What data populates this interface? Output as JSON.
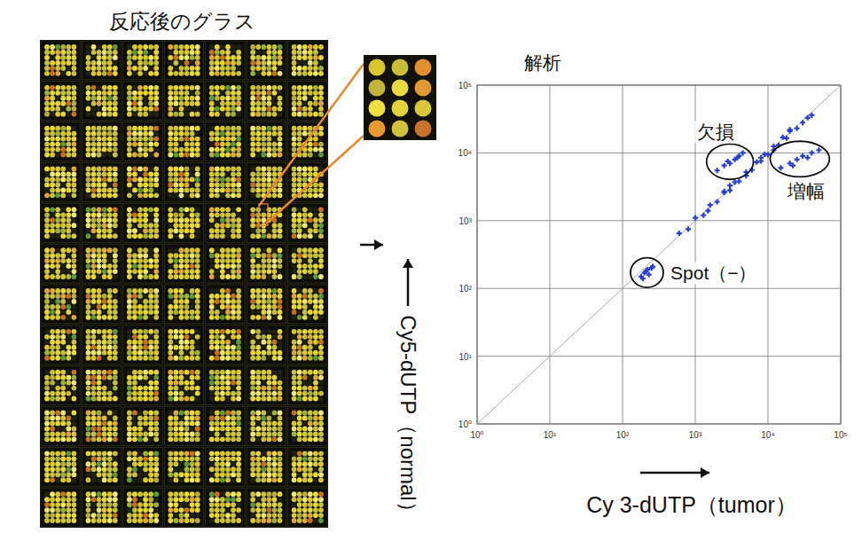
{
  "glass": {
    "title": "反応後のグラス"
  },
  "chart_data": {
    "type": "scatter",
    "title": "解析",
    "xlabel": "Cy 3-dUTP（tumor）",
    "ylabel": "Cy5-dUTP（normal）",
    "log": true,
    "grid": true,
    "xlim": [
      1,
      100000
    ],
    "ylim": [
      1,
      100000
    ],
    "xticks": [
      {
        "value": 1,
        "label": "10⁰"
      },
      {
        "value": 10,
        "label": "10¹"
      },
      {
        "value": 100,
        "label": "10²"
      },
      {
        "value": 1000,
        "label": "10³"
      },
      {
        "value": 10000,
        "label": "10⁴"
      },
      {
        "value": 100000,
        "label": "10⁵"
      }
    ],
    "yticks": [
      {
        "value": 1,
        "label": "10⁰"
      },
      {
        "value": 10,
        "label": "10¹"
      },
      {
        "value": 100,
        "label": "10²"
      },
      {
        "value": 1000,
        "label": "10³"
      },
      {
        "value": 10000,
        "label": "10⁴"
      },
      {
        "value": 100000,
        "label": "10⁵"
      }
    ],
    "series": [
      {
        "color": "#2b3fd0",
        "marker": "cross",
        "x": [
          600,
          800,
          1000,
          1300,
          1600,
          2000,
          2500,
          3000,
          3500,
          4000,
          5000,
          6000,
          7000,
          8000,
          9000,
          10000,
          12000,
          14000,
          16000,
          18000,
          20000,
          25000,
          30000,
          35000,
          40000,
          3000,
          5000,
          8000,
          12000,
          20000,
          1500,
          2500
        ],
        "values": [
          650,
          750,
          1100,
          1200,
          1700,
          1900,
          2600,
          2800,
          3700,
          3800,
          5200,
          5600,
          7300,
          7600,
          9500,
          9400,
          12500,
          13000,
          17000,
          16500,
          21000,
          23000,
          28000,
          33000,
          36000,
          3300,
          4600,
          8500,
          11000,
          22000,
          1400,
          2700
        ]
      },
      {
        "name": "欠損",
        "color": "#2b3fd0",
        "marker": "cross",
        "x": [
          2000,
          2500,
          3000,
          3500,
          4000,
          4500,
          2800,
          3800
        ],
        "values": [
          5500,
          6500,
          7000,
          8000,
          9000,
          10000,
          7500,
          8500
        ]
      },
      {
        "name": "増幅",
        "color": "#2b3fd0",
        "marker": "cross",
        "x": [
          15000,
          20000,
          25000,
          30000,
          40000,
          50000,
          22000,
          35000
        ],
        "values": [
          6000,
          7000,
          8000,
          9000,
          10000,
          11000,
          6500,
          8500
        ]
      },
      {
        "name": "Spot（−）",
        "color": "#2b3fd0",
        "marker": "cross",
        "x": [
          180,
          200,
          220,
          250,
          230,
          210,
          260,
          190
        ],
        "values": [
          150,
          170,
          190,
          200,
          160,
          180,
          210,
          140
        ]
      }
    ]
  }
}
